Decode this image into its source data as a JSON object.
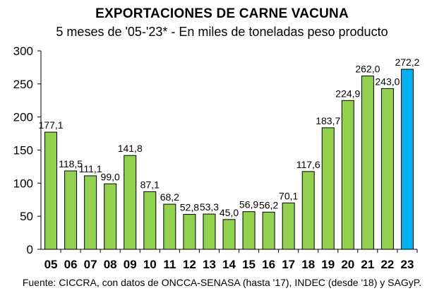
{
  "chart_data": {
    "type": "bar",
    "title": "EXPORTACIONES DE CARNE VACUNA",
    "subtitle": "5 meses de '05-'23* - En miles de toneladas peso producto",
    "source": "Fuente: CICCRA, con datos de ONCCA-SENASA (hasta '17), INDEC (desde '18) y SAGyP.",
    "xlabel": "",
    "ylabel": "",
    "categories": [
      "05",
      "06",
      "07",
      "08",
      "09",
      "10",
      "11",
      "12",
      "13",
      "14",
      "15",
      "16",
      "17",
      "18",
      "19",
      "20",
      "21",
      "22",
      "23"
    ],
    "values": [
      177.1,
      118.5,
      111.1,
      99.0,
      141.8,
      87.1,
      68.2,
      52.8,
      53.3,
      45.0,
      56.9,
      56.2,
      70.1,
      117.6,
      183.7,
      224.9,
      262.0,
      243.0,
      272.2
    ],
    "data_labels": [
      "177,1",
      "118,5",
      "111,1",
      "99,0",
      "141,8",
      "87,1",
      "68,2",
      "52,8",
      "53,3",
      "45,0",
      "56,9",
      "56,2",
      "70,1",
      "117,6",
      "183,7",
      "224,9",
      "262,0",
      "243,0",
      "272,2"
    ],
    "ylim": [
      0,
      300
    ],
    "yticks": [
      0,
      50,
      100,
      150,
      200,
      250,
      300
    ],
    "grid": false,
    "legend": "none",
    "colors": {
      "bar": "#92D050",
      "highlight_bar": "#00B0F0",
      "bar_stroke": "#000000",
      "axis": "#000000"
    },
    "highlight_category": "23"
  }
}
